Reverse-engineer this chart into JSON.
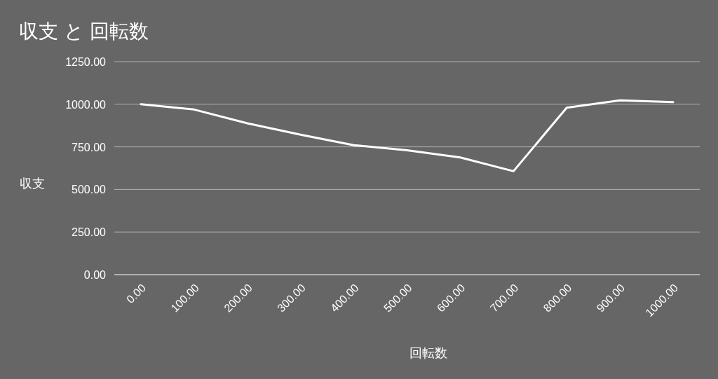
{
  "chart_data": {
    "type": "line",
    "title": "収支 と 回転数",
    "xlabel": "回転数",
    "ylabel": "収支",
    "x": [
      0,
      100,
      200,
      300,
      400,
      500,
      600,
      700,
      800,
      900,
      1000
    ],
    "series": [
      {
        "color": "#ffffff",
        "values": [
          1000,
          969,
          888,
          821,
          760,
          730,
          688,
          607,
          980,
          1023,
          1013
        ]
      }
    ],
    "xlim": [
      -50,
      1050
    ],
    "xticks": [
      {
        "value": 0,
        "label": "0.00"
      },
      {
        "value": 100,
        "label": "100.00"
      },
      {
        "value": 200,
        "label": "200.00"
      },
      {
        "value": 300,
        "label": "300.00"
      },
      {
        "value": 400,
        "label": "400.00"
      },
      {
        "value": 500,
        "label": "500.00"
      },
      {
        "value": 600,
        "label": "600.00"
      },
      {
        "value": 700,
        "label": "700.00"
      },
      {
        "value": 800,
        "label": "800.00"
      },
      {
        "value": 900,
        "label": "900.00"
      },
      {
        "value": 1000,
        "label": "1000.00"
      }
    ],
    "ylim": [
      0,
      1250
    ],
    "yticks": [
      {
        "value": 0,
        "label": "0.00"
      },
      {
        "value": 250,
        "label": "250.00"
      },
      {
        "value": 500,
        "label": "500.00"
      },
      {
        "value": 750,
        "label": "750.00"
      },
      {
        "value": 1000,
        "label": "1000.00"
      },
      {
        "value": 1250,
        "label": "1250.00"
      }
    ],
    "grid": "y",
    "marker": "none",
    "line_style": "solid"
  }
}
